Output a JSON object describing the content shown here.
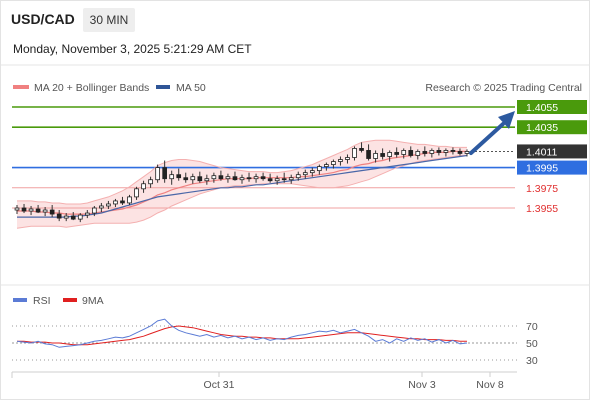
{
  "header": {
    "pair": "USD/CAD",
    "timeframe": "30 MIN",
    "timestamp": "Monday, November 3, 2025 5:21:29 AM CET"
  },
  "legend": {
    "items": [
      {
        "label": "MA 20 + Bollinger Bands",
        "color": "#f08080"
      },
      {
        "label": "MA 50",
        "color": "#2f5597"
      }
    ],
    "credit": "Research © 2025 Trading Central"
  },
  "rsi_legend": {
    "items": [
      {
        "label": "RSI",
        "color": "#5b7bd5"
      },
      {
        "label": "9MA",
        "color": "#e02020"
      }
    ]
  },
  "price_levels": [
    {
      "value": "1.4055",
      "kind": "target",
      "color": "#4a9a0c"
    },
    {
      "value": "1.4035",
      "kind": "target",
      "color": "#4a9a0c"
    },
    {
      "value": "1.4011",
      "kind": "last",
      "color": "#333333"
    },
    {
      "value": "1.3995",
      "kind": "pivot",
      "color": "#2f6ee0"
    },
    {
      "value": "1.3975",
      "kind": "support",
      "color": "#e03030"
    },
    {
      "value": "1.3955",
      "kind": "support",
      "color": "#e03030"
    }
  ],
  "chart_data": {
    "type": "candlestick",
    "instrument": "USD/CAD",
    "x_ticks": [
      "Oct 31",
      "Nov 3",
      "Nov 8"
    ],
    "candles": [
      [
        1.3953,
        1.3958,
        1.3949,
        1.3955
      ],
      [
        1.3955,
        1.3959,
        1.395,
        1.3952
      ],
      [
        1.3952,
        1.3957,
        1.3948,
        1.3954
      ],
      [
        1.3954,
        1.3958,
        1.395,
        1.3951
      ],
      [
        1.3951,
        1.3956,
        1.3947,
        1.3953
      ],
      [
        1.3953,
        1.3958,
        1.3946,
        1.3949
      ],
      [
        1.3949,
        1.3953,
        1.3942,
        1.3945
      ],
      [
        1.3945,
        1.395,
        1.3942,
        1.3947
      ],
      [
        1.3947,
        1.3951,
        1.3943,
        1.3944
      ],
      [
        1.3944,
        1.395,
        1.3941,
        1.3948
      ],
      [
        1.3948,
        1.3953,
        1.3945,
        1.395
      ],
      [
        1.395,
        1.3957,
        1.3947,
        1.3955
      ],
      [
        1.3955,
        1.396,
        1.3951,
        1.3957
      ],
      [
        1.3957,
        1.3962,
        1.3954,
        1.3959
      ],
      [
        1.3959,
        1.3964,
        1.3956,
        1.3962
      ],
      [
        1.3962,
        1.3966,
        1.3958,
        1.396
      ],
      [
        1.396,
        1.3968,
        1.3958,
        1.3966
      ],
      [
        1.3966,
        1.3976,
        1.3963,
        1.3974
      ],
      [
        1.3974,
        1.3982,
        1.397,
        1.3979
      ],
      [
        1.3979,
        1.3986,
        1.3975,
        1.3983
      ],
      [
        1.3983,
        1.3998,
        1.398,
        1.3995
      ],
      [
        1.3995,
        1.4002,
        1.398,
        1.3984
      ],
      [
        1.3984,
        1.3992,
        1.3978,
        1.3988
      ],
      [
        1.3988,
        1.3994,
        1.3982,
        1.3985
      ],
      [
        1.3985,
        1.399,
        1.398,
        1.3983
      ],
      [
        1.3983,
        1.3989,
        1.3979,
        1.3986
      ],
      [
        1.3986,
        1.3991,
        1.398,
        1.3982
      ],
      [
        1.3982,
        1.3988,
        1.3978,
        1.3984
      ],
      [
        1.3984,
        1.399,
        1.398,
        1.3987
      ],
      [
        1.3987,
        1.3992,
        1.3982,
        1.3984
      ],
      [
        1.3984,
        1.3989,
        1.398,
        1.3986
      ],
      [
        1.3986,
        1.3991,
        1.3982,
        1.3983
      ],
      [
        1.3983,
        1.3988,
        1.3979,
        1.3985
      ],
      [
        1.3985,
        1.399,
        1.3981,
        1.3984
      ],
      [
        1.3984,
        1.3989,
        1.398,
        1.3986
      ],
      [
        1.3986,
        1.399,
        1.3982,
        1.3984
      ],
      [
        1.3984,
        1.3989,
        1.398,
        1.3982
      ],
      [
        1.3982,
        1.3987,
        1.3978,
        1.3984
      ],
      [
        1.3984,
        1.399,
        1.398,
        1.3983
      ],
      [
        1.3983,
        1.3988,
        1.3979,
        1.3985
      ],
      [
        1.3985,
        1.3991,
        1.3982,
        1.3988
      ],
      [
        1.3988,
        1.3993,
        1.3984,
        1.399
      ],
      [
        1.399,
        1.3995,
        1.3986,
        1.3992
      ],
      [
        1.3992,
        1.3998,
        1.3988,
        1.3996
      ],
      [
        1.3996,
        1.4,
        1.3992,
        1.3998
      ],
      [
        1.3998,
        1.4003,
        1.3994,
        1.4001
      ],
      [
        1.4001,
        1.4006,
        1.3997,
        1.4003
      ],
      [
        1.4003,
        1.4008,
        1.3999,
        1.4005
      ],
      [
        1.4005,
        1.4016,
        1.4002,
        1.4014
      ],
      [
        1.4014,
        1.402,
        1.401,
        1.4012
      ],
      [
        1.4012,
        1.4018,
        1.4002,
        1.4004
      ],
      [
        1.4004,
        1.4012,
        1.4,
        1.4009
      ],
      [
        1.4009,
        1.4014,
        1.4003,
        1.4006
      ],
      [
        1.4006,
        1.4012,
        1.4001,
        1.401
      ],
      [
        1.401,
        1.4015,
        1.4005,
        1.4008
      ],
      [
        1.4008,
        1.4014,
        1.4004,
        1.4012
      ],
      [
        1.4012,
        1.4016,
        1.4005,
        1.4007
      ],
      [
        1.4007,
        1.4013,
        1.4003,
        1.4011
      ],
      [
        1.4011,
        1.4016,
        1.4006,
        1.4009
      ],
      [
        1.4009,
        1.4014,
        1.4005,
        1.4012
      ],
      [
        1.4012,
        1.4015,
        1.4007,
        1.401
      ],
      [
        1.401,
        1.4014,
        1.4006,
        1.4012
      ],
      [
        1.4012,
        1.4015,
        1.4008,
        1.4011
      ],
      [
        1.4011,
        1.4014,
        1.4007,
        1.4009
      ],
      [
        1.4009,
        1.4013,
        1.4006,
        1.4011
      ]
    ],
    "ma20": [
      1.3952,
      1.3952,
      1.3952,
      1.3951,
      1.3951,
      1.395,
      1.395,
      1.3949,
      1.3949,
      1.3949,
      1.3949,
      1.395,
      1.3951,
      1.3952,
      1.3953,
      1.3954,
      1.3956,
      1.3958,
      1.3961,
      1.3964,
      1.3968,
      1.397,
      1.3973,
      1.3975,
      1.3977,
      1.3979,
      1.398,
      1.3981,
      1.3982,
      1.3983,
      1.3984,
      1.3984,
      1.3984,
      1.3984,
      1.3985,
      1.3985,
      1.3985,
      1.3985,
      1.3985,
      1.3985,
      1.3986,
      1.3986,
      1.3987,
      1.3988,
      1.3989,
      1.399,
      1.3992,
      1.3993,
      1.3996,
      1.3998,
      1.3999,
      1.4001,
      1.4002,
      1.4004,
      1.4005,
      1.4006,
      1.4007,
      1.4008,
      1.4009,
      1.401,
      1.401,
      1.401,
      1.4011,
      1.4011,
      1.4011
    ],
    "bb_upper": [
      1.3962,
      1.3962,
      1.3962,
      1.3961,
      1.3961,
      1.396,
      1.396,
      1.3959,
      1.3959,
      1.3959,
      1.396,
      1.3962,
      1.3964,
      1.3966,
      1.3969,
      1.3972,
      1.3976,
      1.3981,
      1.3986,
      1.3991,
      1.3997,
      1.4,
      1.4002,
      1.4003,
      1.4003,
      1.4002,
      1.4001,
      1.3999,
      1.3997,
      1.3995,
      1.3994,
      1.3993,
      1.3992,
      1.3991,
      1.3991,
      1.3991,
      1.399,
      1.399,
      1.3991,
      1.3992,
      1.3994,
      1.3996,
      1.3998,
      1.4001,
      1.4004,
      1.4007,
      1.401,
      1.4013,
      1.4017,
      1.402,
      1.4021,
      1.4022,
      1.4022,
      1.4022,
      1.4021,
      1.402,
      1.4019,
      1.4018,
      1.4018,
      1.4017,
      1.4016,
      1.4016,
      1.4015,
      1.4015,
      1.4015
    ],
    "bb_lower": [
      1.3935,
      1.3936,
      1.3937,
      1.3937,
      1.3937,
      1.3937,
      1.3937,
      1.3936,
      1.3937,
      1.3938,
      1.3939,
      1.394,
      1.394,
      1.394,
      1.394,
      1.394,
      1.394,
      1.3941,
      1.3943,
      1.3946,
      1.395,
      1.3953,
      1.3957,
      1.396,
      1.3963,
      1.3966,
      1.3969,
      1.3971,
      1.3973,
      1.3975,
      1.3976,
      1.3977,
      1.3977,
      1.3978,
      1.3978,
      1.3979,
      1.3979,
      1.3979,
      1.3979,
      1.3979,
      1.3978,
      1.3977,
      1.3976,
      1.3975,
      1.3975,
      1.3975,
      1.3976,
      1.3977,
      1.3979,
      1.3981,
      1.3983,
      1.3986,
      1.3989,
      1.3992,
      1.3995,
      1.3997,
      1.3999,
      1.4001,
      1.4002,
      1.4003,
      1.4004,
      1.4005,
      1.4006,
      1.4007,
      1.4007
    ],
    "ma50": [
      1.3946,
      1.3946,
      1.3946,
      1.3946,
      1.3946,
      1.3946,
      1.3946,
      1.3946,
      1.3947,
      1.3947,
      1.3948,
      1.3949,
      1.395,
      1.3952,
      1.3954,
      1.3956,
      1.3958,
      1.396,
      1.3962,
      1.3964,
      1.3966,
      1.3967,
      1.3968,
      1.3969,
      1.397,
      1.3971,
      1.3972,
      1.3973,
      1.3974,
      1.3975,
      1.3975,
      1.3976,
      1.3976,
      1.3977,
      1.3978,
      1.3978,
      1.3979,
      1.398,
      1.3981,
      1.3982,
      1.3983,
      1.3984,
      1.3985,
      1.3986,
      1.3987,
      1.3988,
      1.3989,
      1.399,
      1.3991,
      1.3992,
      1.3993,
      1.3994,
      1.3995,
      1.3996,
      1.3997,
      1.3998,
      1.3999,
      1.4,
      1.4001,
      1.4002,
      1.4003,
      1.4004,
      1.4005,
      1.4006,
      1.4007
    ],
    "rsi": {
      "ticks": [
        70,
        50,
        30
      ],
      "reference_levels": [
        70,
        50,
        30
      ],
      "rsi_values": [
        52,
        51,
        50,
        52,
        49,
        48,
        45,
        46,
        47,
        48,
        50,
        52,
        53,
        55,
        57,
        56,
        58,
        62,
        66,
        70,
        76,
        78,
        70,
        65,
        62,
        60,
        58,
        60,
        57,
        59,
        56,
        58,
        55,
        57,
        54,
        56,
        53,
        55,
        54,
        57,
        59,
        60,
        62,
        64,
        63,
        65,
        62,
        64,
        66,
        62,
        58,
        52,
        54,
        50,
        55,
        52,
        56,
        53,
        55,
        51,
        54,
        50,
        53,
        49,
        50
      ],
      "ma9_values": [
        52,
        52,
        51,
        51,
        51,
        50,
        50,
        49,
        48,
        48,
        48,
        49,
        50,
        51,
        52,
        53,
        54,
        56,
        58,
        61,
        64,
        67,
        69,
        70,
        69,
        68,
        66,
        64,
        62,
        60,
        59,
        58,
        58,
        57,
        57,
        56,
        56,
        55,
        55,
        55,
        55,
        56,
        57,
        58,
        59,
        60,
        61,
        62,
        62,
        62,
        61,
        60,
        59,
        58,
        57,
        56,
        55,
        55,
        54,
        54,
        54,
        53,
        53,
        52,
        52
      ]
    }
  }
}
